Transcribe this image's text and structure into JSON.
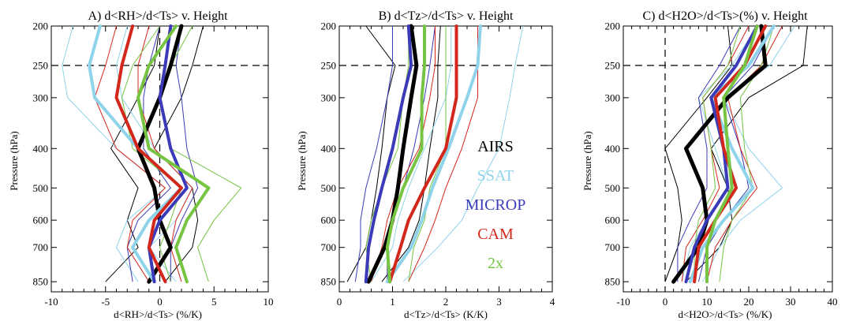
{
  "figure": {
    "legend_entries": [
      {
        "label": "AIRS",
        "color": "#000000"
      },
      {
        "label": "SSAT",
        "color": "#8fd3ea"
      },
      {
        "label": "MICROP",
        "color": "#3b3ab8"
      },
      {
        "label": "CAM",
        "color": "#d4271c"
      },
      {
        "label": "2x",
        "color": "#76c442"
      }
    ]
  },
  "chart_data": [
    {
      "type": "line",
      "title": "A) d<RH>/d<Ts> v. Height",
      "xlabel": "d<RH>/d<Ts> (%/K)",
      "ylabel": "Pressure (hPa)",
      "xlim": [
        -10,
        10
      ],
      "ylim": [
        900,
        200
      ],
      "y_scale": "log",
      "xticks": [
        -10,
        -5,
        0,
        5,
        10
      ],
      "yticks": [
        200,
        250,
        300,
        400,
        500,
        600,
        700,
        850
      ],
      "reference_lines": {
        "x": 0,
        "y": 250
      },
      "y": [
        850,
        700,
        600,
        500,
        400,
        300,
        250,
        200
      ],
      "series": [
        {
          "name": "AIRS",
          "color": "#000000",
          "x": [
            -1.0,
            1.0,
            0.0,
            -0.5,
            -2.0,
            0.0,
            1.0,
            2.0
          ],
          "lower": [
            -5.0,
            -2.0,
            -3.0,
            -2.0,
            -4.5,
            -2.0,
            -0.5,
            0.0
          ],
          "upper": [
            0.5,
            3.0,
            3.5,
            3.0,
            -0.5,
            2.0,
            3.0,
            4.0
          ]
        },
        {
          "name": "SSAT",
          "color": "#8fd3ea",
          "x": [
            -0.5,
            -2.5,
            -1.0,
            2.0,
            -2.0,
            -6.0,
            -6.5,
            -5.5
          ],
          "lower": [
            -2.0,
            -4.0,
            -3.0,
            0.5,
            -4.0,
            -8.5,
            -9.0,
            -8.0
          ],
          "upper": [
            1.5,
            -1.0,
            1.5,
            3.0,
            -0.5,
            -3.5,
            -4.0,
            -3.0
          ]
        },
        {
          "name": "MICROP",
          "color": "#3b3ab8",
          "x": [
            -0.5,
            -1.0,
            0.0,
            2.5,
            1.0,
            0.0,
            0.5,
            1.0
          ],
          "lower": [
            -2.5,
            -3.0,
            -2.0,
            1.0,
            -1.5,
            -1.5,
            -1.0,
            0.0
          ],
          "upper": [
            1.0,
            1.0,
            2.0,
            3.5,
            2.5,
            2.0,
            1.5,
            2.0
          ]
        },
        {
          "name": "CAM",
          "color": "#d4271c",
          "x": [
            0.5,
            -1.0,
            -0.5,
            2.0,
            -2.0,
            -4.0,
            -3.5,
            -2.5
          ],
          "lower": [
            -1.0,
            -3.0,
            -2.5,
            0.5,
            -4.0,
            -6.0,
            -5.0,
            -4.0
          ],
          "upper": [
            2.0,
            1.0,
            1.5,
            3.0,
            -0.5,
            -2.0,
            -2.0,
            -1.0
          ]
        },
        {
          "name": "2x",
          "color": "#76c442",
          "x": [
            2.5,
            1.5,
            2.5,
            4.5,
            -1.0,
            -2.0,
            -1.0,
            1.5
          ],
          "lower": [
            1.0,
            0.0,
            1.0,
            2.0,
            -2.5,
            -3.5,
            -2.5,
            0.0
          ],
          "upper": [
            4.5,
            3.5,
            5.0,
            7.5,
            1.0,
            0.0,
            1.0,
            3.0
          ]
        }
      ]
    },
    {
      "type": "line",
      "title": "B) d<Tz>/d<Ts> v. Height",
      "xlabel": "d<Tz>/d<Ts> (K/K)",
      "ylabel": "Pressure (hPa)",
      "xlim": [
        0,
        4
      ],
      "ylim": [
        900,
        200
      ],
      "y_scale": "log",
      "xticks": [
        0,
        1,
        2,
        3,
        4
      ],
      "yticks": [
        200,
        250,
        300,
        400,
        500,
        600,
        700,
        850
      ],
      "reference_lines": {
        "y": 250
      },
      "y": [
        850,
        700,
        600,
        500,
        400,
        300,
        250,
        200
      ],
      "series": [
        {
          "name": "AIRS",
          "color": "#000000",
          "x": [
            0.55,
            0.85,
            1.0,
            1.1,
            1.2,
            1.35,
            1.45,
            1.35
          ],
          "lower": [
            0.15,
            0.5,
            0.6,
            0.7,
            0.8,
            0.9,
            1.05,
            0.5
          ],
          "upper": [
            0.8,
            1.3,
            1.5,
            1.6,
            1.7,
            1.85,
            1.85,
            1.9
          ]
        },
        {
          "name": "SSAT",
          "color": "#8fd3ea",
          "x": [
            0.9,
            1.35,
            1.55,
            1.75,
            2.05,
            2.4,
            2.6,
            2.65
          ],
          "lower": [
            0.6,
            1.0,
            1.1,
            1.3,
            1.6,
            2.0,
            2.1,
            2.1
          ],
          "upper": [
            1.2,
            1.85,
            2.3,
            2.6,
            3.0,
            3.2,
            3.3,
            3.45
          ]
        },
        {
          "name": "MICROP",
          "color": "#3b3ab8",
          "x": [
            0.5,
            0.55,
            0.65,
            0.8,
            1.0,
            1.2,
            1.35,
            1.3
          ],
          "lower": [
            0.3,
            0.4,
            0.4,
            0.5,
            0.7,
            0.9,
            1.0,
            1.0
          ],
          "upper": [
            0.9,
            0.9,
            1.0,
            1.2,
            1.4,
            1.6,
            1.7,
            1.8
          ]
        },
        {
          "name": "CAM",
          "color": "#d4271c",
          "x": [
            0.95,
            1.15,
            1.3,
            1.6,
            2.0,
            2.2,
            2.2,
            2.2
          ],
          "lower": [
            0.6,
            0.8,
            0.9,
            1.1,
            1.5,
            1.7,
            1.8,
            1.8
          ],
          "upper": [
            1.3,
            1.6,
            1.8,
            2.0,
            2.3,
            2.6,
            2.6,
            2.6
          ]
        },
        {
          "name": "2x",
          "color": "#76c442",
          "x": [
            0.95,
            0.9,
            1.0,
            1.2,
            1.55,
            1.55,
            1.6,
            1.6
          ],
          "lower": [
            0.6,
            0.5,
            0.6,
            0.8,
            1.1,
            1.2,
            1.3,
            1.3
          ],
          "upper": [
            1.3,
            1.4,
            1.6,
            1.7,
            2.0,
            2.0,
            2.0,
            2.0
          ]
        }
      ]
    },
    {
      "type": "line",
      "title": "C) d<H2O>/d<Ts>(%) v. Height",
      "xlabel": "d<H2O>/d<Ts> (%/K)",
      "ylabel": "Pressure (hPa)",
      "xlim": [
        -10,
        40
      ],
      "ylim": [
        900,
        200
      ],
      "y_scale": "log",
      "xticks": [
        -10,
        0,
        10,
        20,
        30,
        40
      ],
      "yticks": [
        200,
        250,
        300,
        400,
        500,
        600,
        700,
        850
      ],
      "reference_lines": {
        "x": 0,
        "y": 250
      },
      "y": [
        850,
        700,
        600,
        500,
        400,
        300,
        250,
        200
      ],
      "series": [
        {
          "name": "AIRS",
          "color": "#000000",
          "x": [
            2.0,
            8.0,
            10.0,
            9.0,
            5.0,
            15.0,
            24.0,
            23.0
          ],
          "lower": [
            0.0,
            3.0,
            4.0,
            3.0,
            0.0,
            10.0,
            16.0,
            15.0
          ],
          "upper": [
            5.0,
            13.0,
            16.0,
            15.0,
            11.0,
            20.0,
            33.0,
            34.0
          ]
        },
        {
          "name": "SSAT",
          "color": "#8fd3ea",
          "x": [
            6.0,
            9.0,
            14.0,
            21.0,
            16.0,
            11.0,
            20.0,
            26.0
          ],
          "lower": [
            4.0,
            6.0,
            10.0,
            15.0,
            12.0,
            8.0,
            16.0,
            22.0
          ],
          "upper": [
            9.0,
            13.0,
            18.0,
            28.0,
            20.0,
            14.0,
            25.0,
            31.0
          ]
        },
        {
          "name": "MICROP",
          "color": "#3b3ab8",
          "x": [
            5.0,
            7.0,
            10.0,
            15.0,
            14.0,
            11.0,
            17.0,
            22.0
          ],
          "lower": [
            3.0,
            3.0,
            6.0,
            10.0,
            10.0,
            8.0,
            13.0,
            18.0
          ],
          "upper": [
            8.0,
            10.0,
            14.0,
            20.0,
            18.0,
            14.0,
            21.0,
            26.0
          ]
        },
        {
          "name": "CAM",
          "color": "#d4271c",
          "x": [
            7.0,
            8.0,
            12.0,
            17.0,
            14.0,
            12.0,
            19.0,
            24.0
          ],
          "lower": [
            4.0,
            5.0,
            9.0,
            13.0,
            11.0,
            9.0,
            15.0,
            20.0
          ],
          "upper": [
            10.0,
            12.0,
            16.0,
            22.0,
            18.0,
            15.0,
            23.0,
            28.0
          ]
        },
        {
          "name": "2x",
          "color": "#76c442",
          "x": [
            10.0,
            10.0,
            12.0,
            16.0,
            15.0,
            14.0,
            19.0,
            22.0
          ],
          "lower": [
            7.0,
            7.0,
            8.0,
            12.0,
            11.0,
            9.0,
            15.0,
            18.0
          ],
          "upper": [
            13.0,
            14.0,
            16.0,
            21.0,
            19.0,
            18.0,
            23.0,
            26.0
          ]
        }
      ]
    }
  ]
}
